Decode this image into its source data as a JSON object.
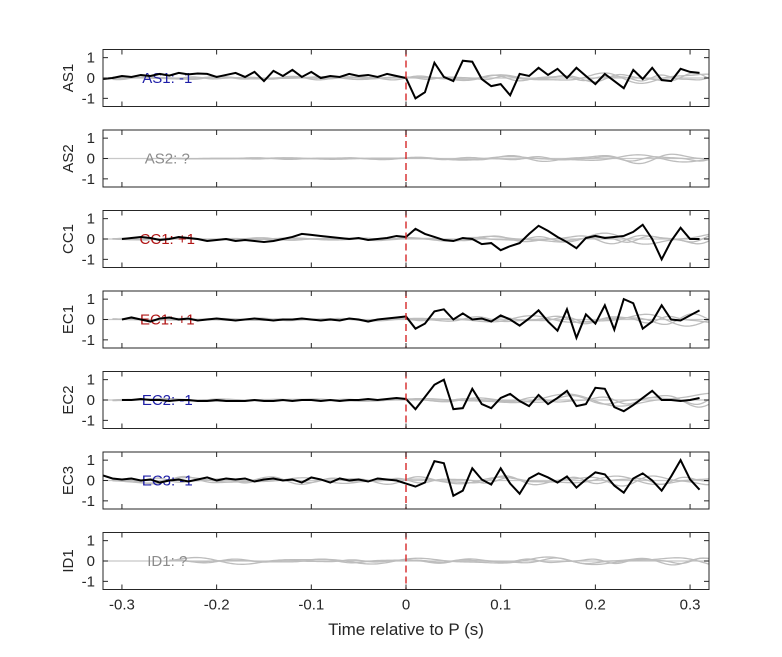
{
  "chart_data": {
    "type": "line",
    "title": "",
    "xlabel": "Time relative to P (s)",
    "xlim": [
      -0.32,
      0.32
    ],
    "xticks": [
      -0.3,
      -0.2,
      -0.1,
      0,
      0.1,
      0.2,
      0.3
    ],
    "xtick_labels": [
      "-0.3",
      "-0.2",
      "-0.1",
      "0",
      "0.1",
      "0.2",
      "0.3"
    ],
    "ylim": [
      -1.4,
      1.4
    ],
    "yticks": [
      -1,
      0,
      1
    ],
    "ytick_labels": [
      "-1",
      "0",
      "1"
    ],
    "grid": false,
    "p_marker": {
      "x": 0,
      "color": "#d62728",
      "style": "dashed"
    },
    "panels": [
      {
        "ylabel": "AS1",
        "annotation": "AS1: -1",
        "annotation_color": "#1f1fa8",
        "gray_start": -0.31,
        "gray_series": [
          {
            "name": "",
            "amp": [
              0.08,
              0.1,
              0.25
            ],
            "freq": 14,
            "phase": 0.0
          },
          {
            "name": "",
            "amp": [
              0.06,
              0.08,
              0.35
            ],
            "freq": 10,
            "phase": 1.3
          },
          {
            "name": "",
            "amp": [
              0.05,
              0.06,
              0.18
            ],
            "freq": 18,
            "phase": 2.1
          }
        ],
        "black_x": [
          -0.32,
          -0.31,
          -0.3,
          -0.29,
          -0.28,
          -0.27,
          -0.26,
          -0.25,
          -0.24,
          -0.23,
          -0.22,
          -0.21,
          -0.2,
          -0.19,
          -0.18,
          -0.17,
          -0.16,
          -0.15,
          -0.14,
          -0.13,
          -0.12,
          -0.11,
          -0.1,
          -0.09,
          -0.08,
          -0.07,
          -0.06,
          -0.05,
          -0.04,
          -0.03,
          -0.02,
          -0.01,
          0.0,
          0.01,
          0.02,
          0.03,
          0.04,
          0.05,
          0.06,
          0.07,
          0.08,
          0.09,
          0.1,
          0.11,
          0.12,
          0.13,
          0.14,
          0.15,
          0.16,
          0.17,
          0.18,
          0.19,
          0.2,
          0.21,
          0.22,
          0.23,
          0.24,
          0.25,
          0.26,
          0.27,
          0.28,
          0.29,
          0.3,
          0.31
        ],
        "black_y": [
          -0.05,
          0.0,
          0.1,
          0.05,
          0.15,
          0.1,
          0.2,
          0.12,
          0.25,
          0.18,
          0.22,
          0.2,
          0.05,
          0.15,
          0.25,
          0.05,
          0.3,
          -0.15,
          0.35,
          0.1,
          0.4,
          0.05,
          0.3,
          0.0,
          0.1,
          0.05,
          0.2,
          0.1,
          0.15,
          0.05,
          0.2,
          0.1,
          0.0,
          -1.0,
          -0.7,
          0.75,
          0.05,
          -0.15,
          0.85,
          0.8,
          -0.05,
          -0.4,
          -0.3,
          -0.85,
          0.2,
          0.1,
          0.5,
          0.15,
          0.45,
          0.0,
          0.5,
          0.1,
          -0.3,
          0.2,
          -0.15,
          -0.5,
          0.4,
          -0.05,
          0.5,
          -0.1,
          -0.15,
          0.45,
          0.3,
          0.25
        ]
      },
      {
        "ylabel": "AS2",
        "annotation": "AS2: ?",
        "annotation_color": "#8c8c8c",
        "gray_start": -0.25,
        "gray_series": [
          {
            "name": "",
            "amp": [
              0.02,
              0.06,
              0.3
            ],
            "freq": 11,
            "phase": 0.4
          },
          {
            "name": "",
            "amp": [
              0.02,
              0.05,
              0.22
            ],
            "freq": 8,
            "phase": 2.0
          },
          {
            "name": "",
            "amp": [
              0.01,
              0.04,
              0.15
            ],
            "freq": 15,
            "phase": 1.1
          }
        ],
        "black_x": [],
        "black_y": []
      },
      {
        "ylabel": "CC1",
        "annotation": "CC1: +1",
        "annotation_color": "#b01515",
        "gray_start": -0.31,
        "gray_series": [
          {
            "name": "",
            "amp": [
              0.05,
              0.08,
              0.3
            ],
            "freq": 12,
            "phase": 0.9
          },
          {
            "name": "",
            "amp": [
              0.04,
              0.06,
              0.4
            ],
            "freq": 9,
            "phase": 2.4
          },
          {
            "name": "",
            "amp": [
              0.03,
              0.05,
              0.2
            ],
            "freq": 16,
            "phase": 0.2
          }
        ],
        "black_x": [
          -0.3,
          -0.29,
          -0.28,
          -0.27,
          -0.26,
          -0.25,
          -0.24,
          -0.23,
          -0.22,
          -0.21,
          -0.2,
          -0.19,
          -0.18,
          -0.17,
          -0.16,
          -0.15,
          -0.14,
          -0.13,
          -0.12,
          -0.11,
          -0.1,
          -0.09,
          -0.08,
          -0.07,
          -0.06,
          -0.05,
          -0.04,
          -0.03,
          -0.02,
          -0.01,
          0.0,
          0.01,
          0.02,
          0.03,
          0.04,
          0.05,
          0.06,
          0.07,
          0.08,
          0.09,
          0.1,
          0.11,
          0.12,
          0.13,
          0.14,
          0.15,
          0.16,
          0.17,
          0.18,
          0.19,
          0.2,
          0.21,
          0.22,
          0.23,
          0.24,
          0.25,
          0.26,
          0.27,
          0.28,
          0.29,
          0.3,
          0.31
        ],
        "black_y": [
          0.0,
          0.05,
          0.1,
          0.05,
          -0.05,
          0.0,
          0.1,
          0.05,
          0.0,
          -0.1,
          -0.05,
          0.0,
          -0.1,
          -0.05,
          -0.1,
          -0.15,
          -0.1,
          0.0,
          0.1,
          0.25,
          0.2,
          0.15,
          0.1,
          0.05,
          0.0,
          0.05,
          -0.05,
          0.0,
          0.05,
          0.15,
          0.1,
          0.5,
          0.25,
          0.1,
          -0.05,
          -0.1,
          0.05,
          0.0,
          -0.25,
          -0.2,
          -0.55,
          -0.35,
          -0.2,
          0.25,
          0.65,
          0.4,
          0.1,
          -0.15,
          -0.45,
          0.05,
          0.15,
          0.05,
          0.1,
          0.15,
          0.35,
          0.7,
          0.0,
          -1.0,
          -0.1,
          0.55,
          0.0,
          0.0
        ]
      },
      {
        "ylabel": "EC1",
        "annotation": "EC1: +1",
        "annotation_color": "#b01515",
        "gray_start": -0.31,
        "gray_series": [
          {
            "name": "",
            "amp": [
              0.05,
              0.08,
              0.3
            ],
            "freq": 13,
            "phase": 1.7
          },
          {
            "name": "",
            "amp": [
              0.04,
              0.07,
              0.35
            ],
            "freq": 9,
            "phase": 0.3
          },
          {
            "name": "",
            "amp": [
              0.03,
              0.05,
              0.2
            ],
            "freq": 17,
            "phase": 2.8
          }
        ],
        "black_x": [
          -0.3,
          -0.29,
          -0.28,
          -0.27,
          -0.26,
          -0.25,
          -0.24,
          -0.23,
          -0.22,
          -0.21,
          -0.2,
          -0.19,
          -0.18,
          -0.17,
          -0.16,
          -0.15,
          -0.14,
          -0.13,
          -0.12,
          -0.11,
          -0.1,
          -0.09,
          -0.08,
          -0.07,
          -0.06,
          -0.05,
          -0.04,
          -0.03,
          -0.02,
          -0.01,
          0.0,
          0.01,
          0.02,
          0.03,
          0.04,
          0.05,
          0.06,
          0.07,
          0.08,
          0.09,
          0.1,
          0.11,
          0.12,
          0.13,
          0.14,
          0.15,
          0.16,
          0.17,
          0.18,
          0.19,
          0.2,
          0.21,
          0.22,
          0.23,
          0.24,
          0.25,
          0.26,
          0.27,
          0.28,
          0.29,
          0.3,
          0.31
        ],
        "black_y": [
          0.0,
          0.1,
          0.0,
          -0.1,
          0.05,
          0.1,
          0.0,
          0.05,
          -0.05,
          0.0,
          0.05,
          0.0,
          -0.05,
          0.0,
          0.05,
          0.0,
          -0.05,
          0.0,
          0.0,
          0.05,
          0.0,
          -0.05,
          0.0,
          -0.05,
          0.05,
          0.0,
          -0.1,
          0.0,
          0.05,
          0.1,
          0.15,
          -0.45,
          -0.2,
          0.4,
          0.5,
          0.0,
          0.3,
          0.0,
          0.05,
          -0.1,
          0.2,
          0.0,
          -0.3,
          0.05,
          0.45,
          -0.1,
          -0.55,
          0.5,
          -0.9,
          0.25,
          -0.2,
          0.7,
          -0.5,
          1.0,
          0.8,
          -0.45,
          -0.1,
          0.7,
          0.0,
          -0.05,
          0.2,
          0.45
        ]
      },
      {
        "ylabel": "EC2",
        "annotation": "EC2: -1",
        "annotation_color": "#1f1fa8",
        "gray_start": -0.31,
        "gray_series": [
          {
            "name": "",
            "amp": [
              0.08,
              0.06,
              0.5
            ],
            "freq": 7,
            "phase": 0.6
          },
          {
            "name": "",
            "amp": [
              0.05,
              0.05,
              0.35
            ],
            "freq": 11,
            "phase": 2.2
          },
          {
            "name": "",
            "amp": [
              0.03,
              0.04,
              0.25
            ],
            "freq": 15,
            "phase": 1.4
          }
        ],
        "black_x": [
          -0.3,
          -0.29,
          -0.28,
          -0.27,
          -0.26,
          -0.25,
          -0.24,
          -0.23,
          -0.22,
          -0.21,
          -0.2,
          -0.19,
          -0.18,
          -0.17,
          -0.16,
          -0.15,
          -0.14,
          -0.13,
          -0.12,
          -0.11,
          -0.1,
          -0.09,
          -0.08,
          -0.07,
          -0.06,
          -0.05,
          -0.04,
          -0.03,
          -0.02,
          -0.01,
          0.0,
          0.01,
          0.02,
          0.03,
          0.04,
          0.05,
          0.06,
          0.07,
          0.08,
          0.09,
          0.1,
          0.11,
          0.12,
          0.13,
          0.14,
          0.15,
          0.16,
          0.17,
          0.18,
          0.19,
          0.2,
          0.21,
          0.22,
          0.23,
          0.24,
          0.25,
          0.26,
          0.27,
          0.28,
          0.29,
          0.3,
          0.31
        ],
        "black_y": [
          0.0,
          0.0,
          0.05,
          0.0,
          0.0,
          -0.05,
          0.0,
          0.0,
          -0.05,
          -0.05,
          0.0,
          -0.05,
          -0.05,
          -0.05,
          0.0,
          -0.05,
          -0.05,
          0.0,
          -0.05,
          0.0,
          0.0,
          -0.05,
          0.0,
          -0.05,
          0.0,
          0.0,
          0.05,
          0.0,
          0.05,
          0.1,
          0.05,
          -0.45,
          0.15,
          0.75,
          1.0,
          -0.45,
          -0.4,
          0.55,
          -0.2,
          -0.4,
          0.1,
          0.3,
          -0.05,
          -0.3,
          0.25,
          -0.2,
          0.1,
          0.45,
          -0.3,
          -0.2,
          0.6,
          0.55,
          -0.35,
          -0.55,
          -0.25,
          0.1,
          0.45,
          0.0,
          0.0,
          -0.05,
          0.0,
          0.1
        ]
      },
      {
        "ylabel": "EC3",
        "annotation": "EC3: -1",
        "annotation_color": "#1f1fa8",
        "gray_start": -0.31,
        "gray_series": [
          {
            "name": "",
            "amp": [
              0.2,
              0.2,
              0.3
            ],
            "freq": 12,
            "phase": 0.2
          },
          {
            "name": "",
            "amp": [
              0.15,
              0.15,
              0.25
            ],
            "freq": 9,
            "phase": 1.8
          },
          {
            "name": "",
            "amp": [
              0.12,
              0.12,
              0.2
            ],
            "freq": 16,
            "phase": 2.9
          }
        ],
        "black_x": [
          -0.32,
          -0.31,
          -0.3,
          -0.29,
          -0.28,
          -0.27,
          -0.26,
          -0.25,
          -0.24,
          -0.23,
          -0.22,
          -0.21,
          -0.2,
          -0.19,
          -0.18,
          -0.17,
          -0.16,
          -0.15,
          -0.14,
          -0.13,
          -0.12,
          -0.11,
          -0.1,
          -0.09,
          -0.08,
          -0.07,
          -0.06,
          -0.05,
          -0.04,
          -0.03,
          -0.02,
          -0.01,
          0.0,
          0.01,
          0.02,
          0.03,
          0.04,
          0.05,
          0.06,
          0.07,
          0.08,
          0.09,
          0.1,
          0.11,
          0.12,
          0.13,
          0.14,
          0.15,
          0.16,
          0.17,
          0.18,
          0.19,
          0.2,
          0.21,
          0.22,
          0.23,
          0.24,
          0.25,
          0.26,
          0.27,
          0.28,
          0.29,
          0.3,
          0.31
        ],
        "black_y": [
          0.25,
          0.1,
          0.05,
          0.1,
          0.0,
          0.05,
          -0.1,
          0.0,
          0.05,
          -0.05,
          0.05,
          0.15,
          0.0,
          0.1,
          0.05,
          0.1,
          -0.05,
          0.05,
          0.1,
          0.0,
          0.05,
          -0.1,
          0.15,
          0.05,
          -0.1,
          0.1,
          0.0,
          0.05,
          -0.05,
          0.1,
          0.05,
          0.0,
          -0.15,
          -0.3,
          -0.1,
          0.95,
          0.85,
          -0.75,
          -0.5,
          0.6,
          0.05,
          -0.2,
          0.6,
          -0.15,
          -0.65,
          0.1,
          0.35,
          0.15,
          -0.1,
          0.2,
          -0.35,
          0.05,
          0.4,
          0.3,
          -0.25,
          -0.6,
          0.1,
          0.35,
          0.0,
          -0.5,
          0.2,
          1.0,
          0.05,
          -0.45
        ]
      },
      {
        "ylabel": "ID1",
        "annotation": "ID1: ?",
        "annotation_color": "#8c8c8c",
        "gray_start": -0.25,
        "gray_series": [
          {
            "name": "",
            "amp": [
              0.2,
              0.15,
              0.25
            ],
            "freq": 8,
            "phase": 0.5
          },
          {
            "name": "",
            "amp": [
              0.1,
              0.1,
              0.2
            ],
            "freq": 12,
            "phase": 2.3
          },
          {
            "name": "",
            "amp": [
              0.05,
              0.06,
              0.15
            ],
            "freq": 16,
            "phase": 1.2
          }
        ],
        "black_x": [],
        "black_y": []
      }
    ]
  }
}
